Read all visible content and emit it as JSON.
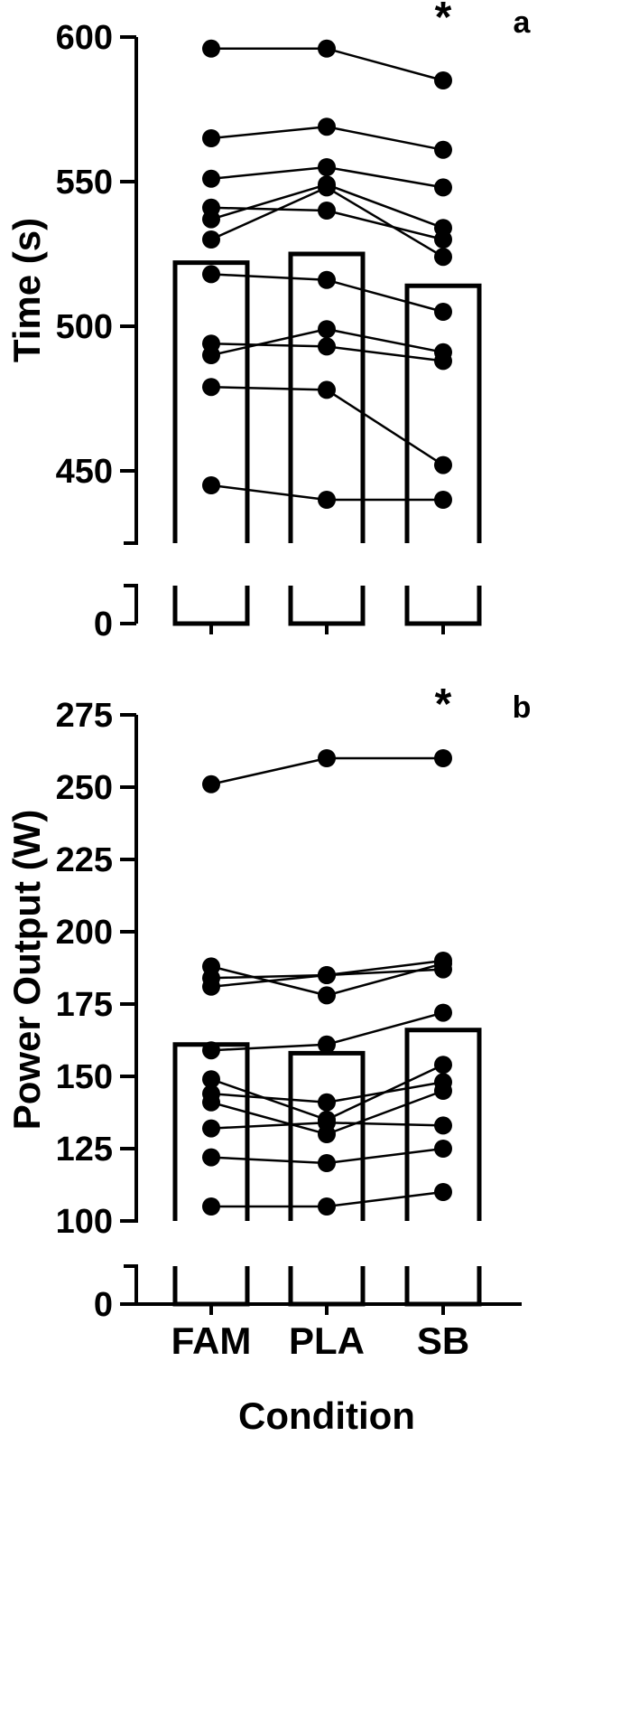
{
  "chart_data": [
    {
      "panel_label": "a",
      "type": "bar",
      "ylabel": "Time (s)",
      "xlabel": "",
      "categories": [
        "FAM",
        "PLA",
        "SB"
      ],
      "bar_values": [
        522,
        525,
        514
      ],
      "ylim": [
        425,
        600
      ],
      "yticks": [
        450,
        500,
        550,
        600
      ],
      "axis_break": true,
      "break_tick": 0,
      "significance": "*",
      "significance_category": "SB",
      "grid": false,
      "subjects": [
        [
          596,
          596,
          585
        ],
        [
          565,
          569,
          561
        ],
        [
          551,
          555,
          548
        ],
        [
          541,
          540,
          530
        ],
        [
          537,
          549,
          534
        ],
        [
          530,
          548,
          524
        ],
        [
          518,
          516,
          505
        ],
        [
          494,
          493,
          488
        ],
        [
          490,
          499,
          491
        ],
        [
          479,
          478,
          452
        ],
        [
          445,
          440,
          440
        ]
      ]
    },
    {
      "panel_label": "b",
      "type": "bar",
      "ylabel": "Power Output (W)",
      "xlabel": "Condition",
      "categories": [
        "FAM",
        "PLA",
        "SB"
      ],
      "bar_values": [
        161,
        158,
        166
      ],
      "ylim": [
        100,
        275
      ],
      "yticks": [
        100,
        125,
        150,
        175,
        200,
        225,
        250,
        275
      ],
      "axis_break": true,
      "break_tick": 0,
      "significance": "*",
      "significance_category": "SB",
      "grid": false,
      "subjects": [
        [
          251,
          260,
          260
        ],
        [
          188,
          178,
          189
        ],
        [
          184,
          185,
          190
        ],
        [
          181,
          185,
          187
        ],
        [
          159,
          161,
          172
        ],
        [
          149,
          135,
          154
        ],
        [
          144,
          141,
          148
        ],
        [
          141,
          130,
          145
        ],
        [
          132,
          134,
          133
        ],
        [
          122,
          120,
          125
        ],
        [
          105,
          105,
          110
        ]
      ]
    }
  ]
}
